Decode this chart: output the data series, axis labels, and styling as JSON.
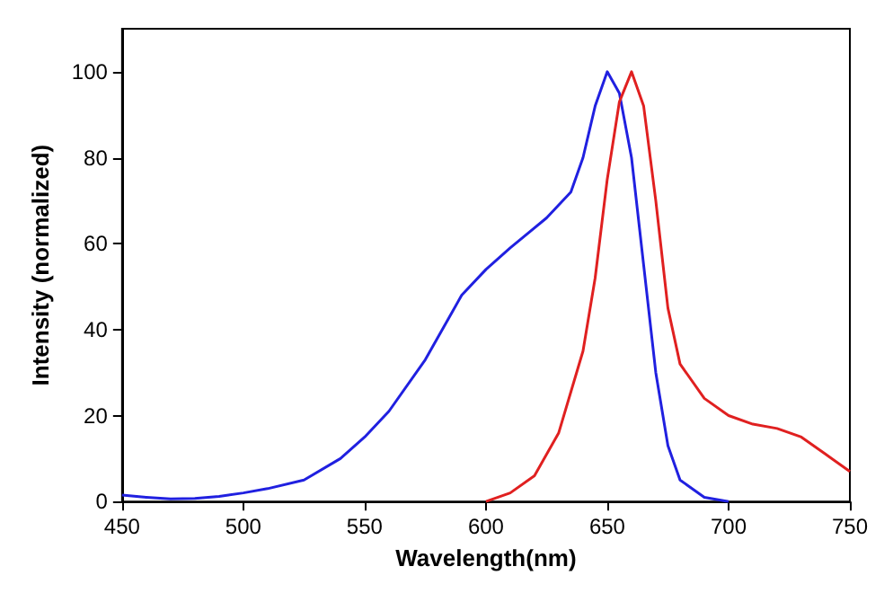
{
  "chart_data": {
    "type": "line",
    "xlabel": "Wavelength(nm)",
    "ylabel": "Intensity (normalized)",
    "xlim": [
      450,
      750
    ],
    "ylim": [
      0,
      110
    ],
    "xticks": [
      450,
      500,
      550,
      600,
      650,
      700,
      750
    ],
    "yticks": [
      0,
      20,
      40,
      60,
      80,
      100
    ],
    "grid": false,
    "marker": "none",
    "line_style": "solid",
    "series": [
      {
        "color": "#2020e0",
        "x": [
          450,
          460,
          470,
          480,
          490,
          500,
          510,
          525,
          540,
          550,
          560,
          575,
          585,
          590,
          600,
          610,
          625,
          635,
          640,
          645,
          650,
          655,
          660,
          665,
          670,
          675,
          680,
          690,
          700
        ],
        "values": [
          1.5,
          1,
          0.6,
          0.7,
          1.2,
          2,
          3,
          5,
          10,
          15,
          21,
          33,
          43,
          48,
          54,
          59,
          66,
          72,
          80,
          92,
          100,
          95,
          80,
          55,
          30,
          13,
          5,
          1,
          0
        ]
      },
      {
        "color": "#e02020",
        "x": [
          600,
          610,
          620,
          630,
          640,
          645,
          650,
          655,
          660,
          665,
          670,
          675,
          680,
          690,
          700,
          710,
          720,
          730,
          740,
          750
        ],
        "values": [
          0,
          2,
          6,
          16,
          35,
          52,
          75,
          93,
          100,
          92,
          70,
          45,
          32,
          24,
          20,
          18,
          17,
          15,
          11,
          7
        ]
      }
    ]
  }
}
